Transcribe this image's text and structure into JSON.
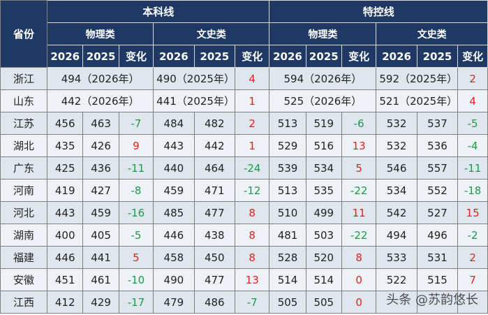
{
  "header": {
    "province": "省份",
    "group_ben": "本科线",
    "group_te": "特控线",
    "sub_wuli": "物理类",
    "sub_wenshi": "文史类",
    "year_2026": "2026",
    "year_2025": "2025",
    "change": "变化"
  },
  "merged_rows": [
    {
      "province": "浙江",
      "ben_wuli": "494（2026年）",
      "ben_wenshi": "490（2025年）",
      "ben_wenshi_change": "4",
      "te_wuli": "594（2026年）",
      "te_wenshi": "592（2025年）",
      "te_wenshi_change": "2"
    },
    {
      "province": "山东",
      "ben_wuli": "442（2026年）",
      "ben_wenshi": "441（2025年）",
      "ben_wenshi_change": "1",
      "te_wuli": "525（2026年）",
      "te_wenshi": "521（2025年）",
      "te_wenshi_change": "4"
    }
  ],
  "rows": [
    {
      "province": "江苏",
      "c": [
        "456",
        "463",
        "-7",
        "484",
        "482",
        "2",
        "513",
        "519",
        "-6",
        "532",
        "537",
        "-5"
      ]
    },
    {
      "province": "湖北",
      "c": [
        "435",
        "426",
        "9",
        "443",
        "442",
        "1",
        "529",
        "516",
        "13",
        "532",
        "536",
        "-4"
      ]
    },
    {
      "province": "广东",
      "c": [
        "425",
        "436",
        "-11",
        "440",
        "464",
        "-24",
        "539",
        "534",
        "5",
        "546",
        "557",
        "-11"
      ]
    },
    {
      "province": "河南",
      "c": [
        "419",
        "427",
        "-8",
        "459",
        "471",
        "-12",
        "513",
        "535",
        "-22",
        "534",
        "552",
        "-18"
      ]
    },
    {
      "province": "河北",
      "c": [
        "443",
        "459",
        "-16",
        "485",
        "477",
        "8",
        "510",
        "499",
        "11",
        "542",
        "527",
        "15"
      ]
    },
    {
      "province": "湖南",
      "c": [
        "400",
        "405",
        "-5",
        "446",
        "438",
        "8",
        "481",
        "503",
        "-22",
        "494",
        "496",
        "-2"
      ]
    },
    {
      "province": "福建",
      "c": [
        "446",
        "441",
        "5",
        "458",
        "450",
        "8",
        "528",
        "520",
        "8",
        "533",
        "531",
        "2"
      ]
    },
    {
      "province": "安徽",
      "c": [
        "451",
        "461",
        "-10",
        "490",
        "477",
        "13",
        "514",
        "514",
        "0",
        "522",
        "515",
        "7"
      ]
    },
    {
      "province": "江西",
      "c": [
        "412",
        "429",
        "-17",
        "479",
        "486",
        "-7",
        "505",
        "505",
        "0",
        "",
        "",
        ""
      ]
    }
  ],
  "watermark": "头条 @苏韵悠长",
  "colors": {
    "header_bg": "#1f3864",
    "negative": "#1a9a4a",
    "positive": "#e02020",
    "row_bg": "#dfe6ee"
  }
}
